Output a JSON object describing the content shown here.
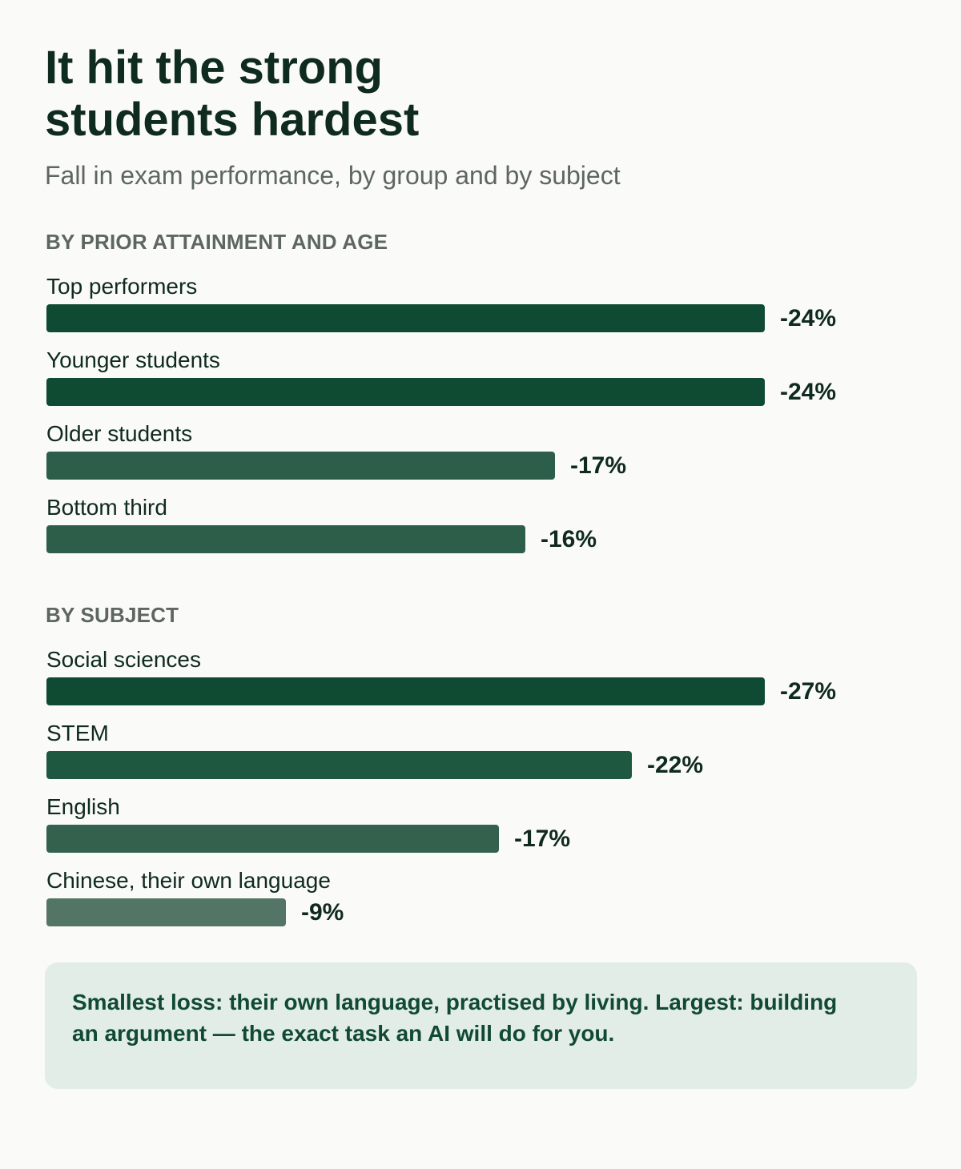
{
  "title_line1": "It hit the strong",
  "title_line2": "students hardest",
  "subtitle": "Fall in exam performance, by group and by subject",
  "callout": "Smallest loss: their own language, practised by living. Largest: building an argument — the exact task an AI will do for you.",
  "colors": {
    "background": "#fafaf8",
    "title": "#0f2a1e",
    "muted": "#5e6661",
    "bar_scale": [
      "#0f4a33",
      "#1f5840",
      "#2d5e4a",
      "#33614e",
      "#527565"
    ],
    "callout_bg": "#e3ede7",
    "callout_text": "#114a33"
  },
  "chart_data": [
    {
      "type": "bar",
      "orientation": "horizontal",
      "section_label": "BY PRIOR ATTAINMENT AND AGE",
      "categories": [
        "Top performers",
        "Younger students",
        "Older students",
        "Bottom third"
      ],
      "values": [
        -24,
        -24,
        -17,
        -16
      ],
      "value_labels": [
        "-24%",
        "-24%",
        "-17%",
        "-16%"
      ],
      "colors": [
        "#0f4a33",
        "#0f4a33",
        "#2d5e4a",
        "#2d5e4a"
      ]
    },
    {
      "type": "bar",
      "orientation": "horizontal",
      "section_label": "BY SUBJECT",
      "categories": [
        "Social sciences",
        "STEM",
        "English",
        "Chinese, their own language"
      ],
      "values": [
        -27,
        -22,
        -17,
        -9
      ],
      "value_labels": [
        "-27%",
        "-22%",
        "-17%",
        "-9%"
      ],
      "colors": [
        "#0f4a33",
        "#1f5840",
        "#33614e",
        "#527565"
      ]
    }
  ]
}
